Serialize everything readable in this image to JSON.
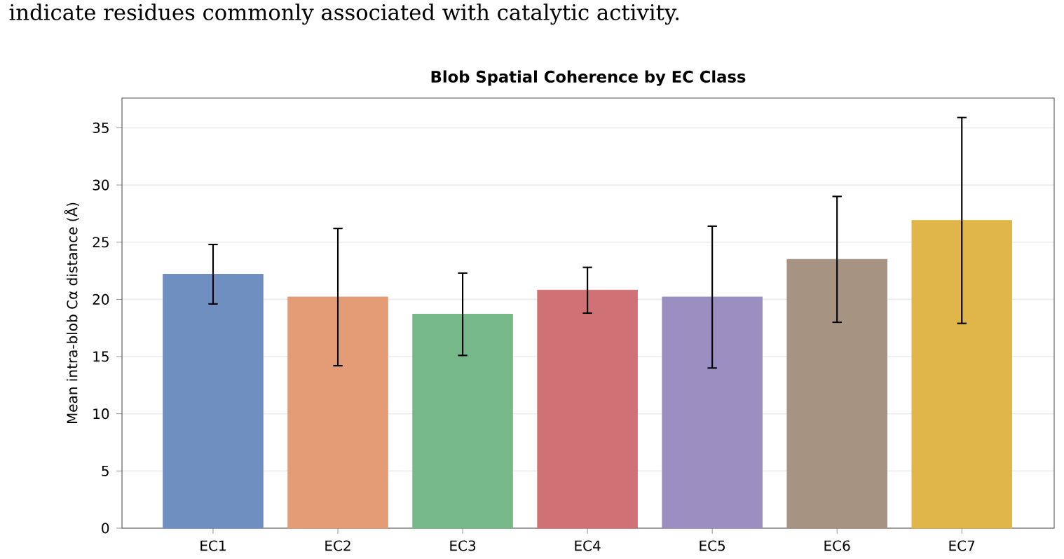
{
  "chart_data": {
    "type": "bar",
    "title": "Blob Spatial Coherence by EC Class",
    "ylabel": "Mean intra-blob Cα distance (Å)",
    "annotations": [
      "indicate residues commonly associated with catalytic activity."
    ],
    "categories": [
      "EC1",
      "EC2",
      "EC3",
      "EC4",
      "EC5",
      "EC6",
      "EC7"
    ],
    "values": [
      22.2,
      20.2,
      18.7,
      20.8,
      20.2,
      23.5,
      26.9
    ],
    "errors": [
      2.6,
      6.0,
      3.6,
      2.0,
      6.2,
      5.5,
      9.0
    ],
    "colors": [
      "#6f8fc0",
      "#e39c76",
      "#77b888",
      "#d07175",
      "#9b8fc2",
      "#a69382",
      "#e0b64a"
    ],
    "ylim": [
      0,
      37.6
    ],
    "yticks": [
      0,
      5,
      10,
      15,
      20,
      25,
      30,
      35
    ],
    "grid": "y"
  }
}
